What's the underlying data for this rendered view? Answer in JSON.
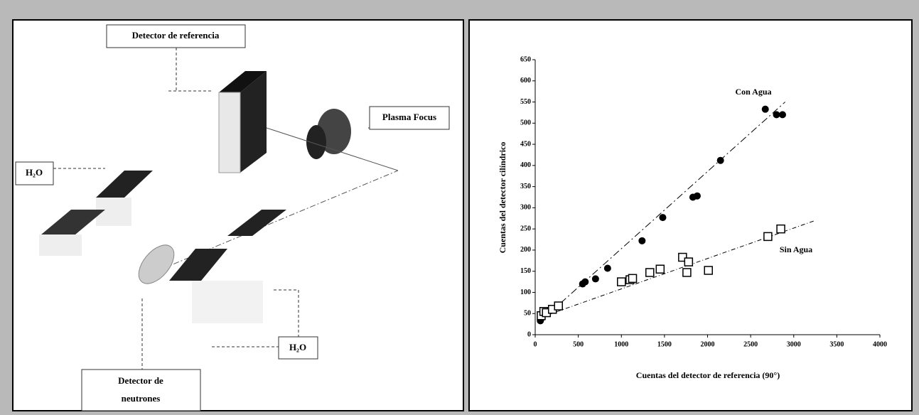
{
  "diagram": {
    "labels": [
      "Detector de referencia",
      "Plasma Focus",
      "H₂O",
      "H₂O",
      [
        "Detector de",
        "neutrones"
      ]
    ]
  },
  "chart_data": {
    "type": "scatter",
    "xlabel": "Cuentas del detector de referencia (90°)",
    "ylabel": "Cuentas del    detector cilíndrico",
    "xlim": [
      0,
      4000
    ],
    "xticks": [
      0,
      500,
      1000,
      1500,
      2000,
      2500,
      3000,
      3500,
      4000
    ],
    "ylim": [
      0,
      650
    ],
    "yticks": [
      0,
      50,
      100,
      150,
      200,
      250,
      300,
      350,
      400,
      450,
      500,
      550,
      600,
      650
    ],
    "series": [
      {
        "name": "Con Agua",
        "marker": "circle",
        "color": "#000000",
        "x": [
          60,
          70,
          80,
          90,
          550,
          580,
          700,
          840,
          1240,
          1480,
          1830,
          1880,
          2150,
          2670,
          2800,
          2870
        ],
        "values": [
          33,
          38,
          43,
          48,
          120,
          125,
          132,
          157,
          222,
          277,
          325,
          328,
          412,
          533,
          520,
          520
        ],
        "fit_x": [
          50,
          2900
        ],
        "fit_y": [
          30,
          550
        ]
      },
      {
        "name": "Sin Agua",
        "marker": "square",
        "color": "#000000",
        "x": [
          70,
          100,
          130,
          200,
          270,
          1000,
          1100,
          1130,
          1330,
          1450,
          1710,
          1760,
          1780,
          2010,
          2700,
          2850
        ],
        "values": [
          45,
          55,
          52,
          60,
          68,
          125,
          130,
          133,
          147,
          155,
          183,
          147,
          172,
          152,
          232,
          250
        ],
        "fit_x": [
          50,
          3250
        ],
        "fit_y": [
          40,
          270
        ]
      }
    ]
  }
}
